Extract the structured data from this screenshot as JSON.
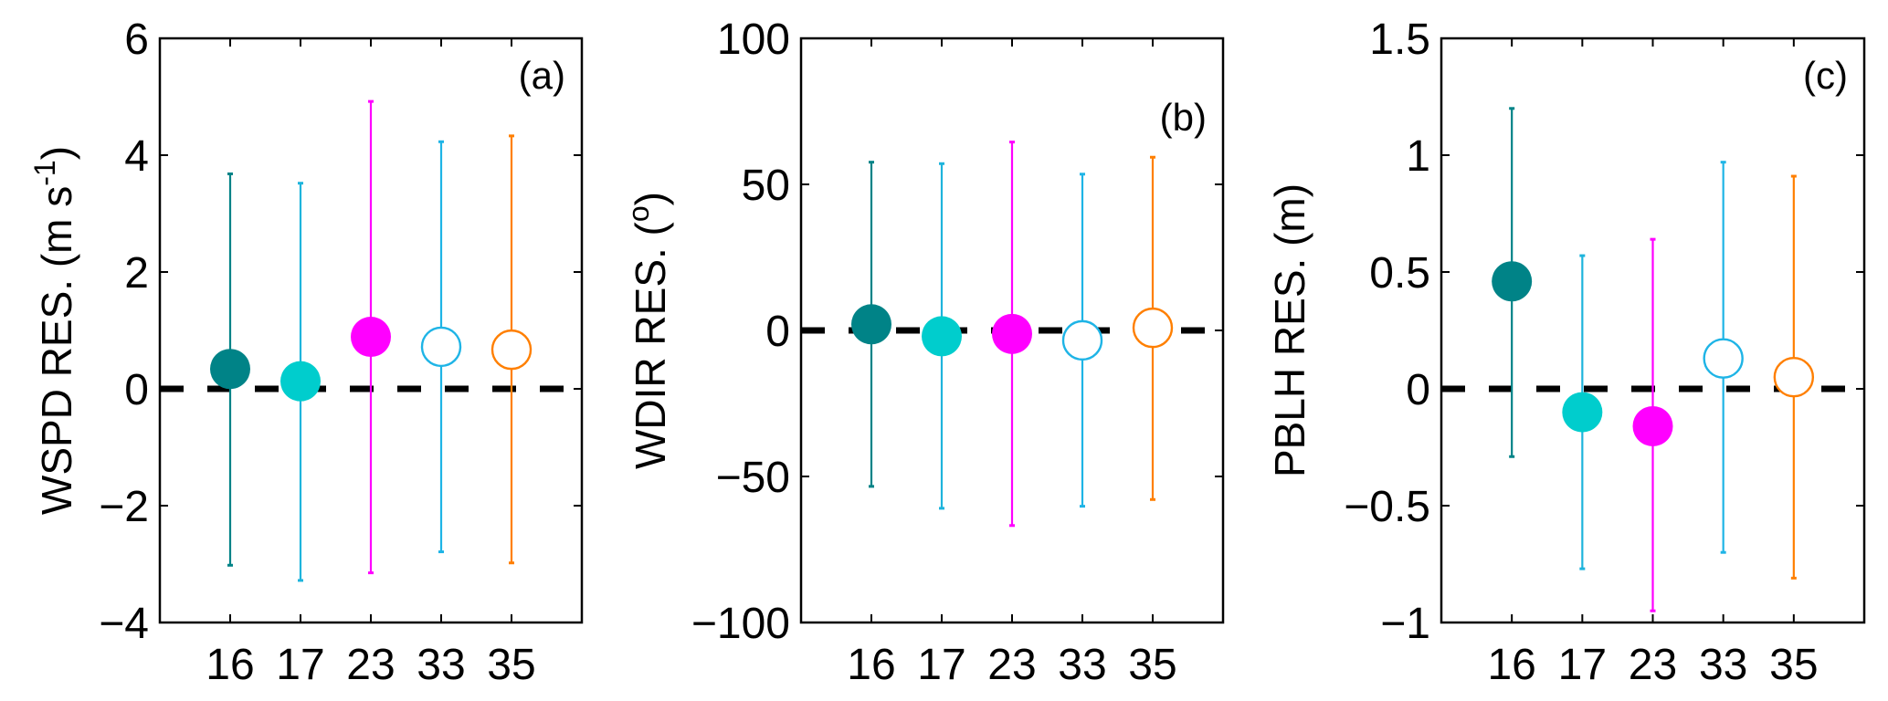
{
  "chart_data": [
    {
      "type": "scatter",
      "panel_label": "(a)",
      "ylabel": {
        "main": "WSPD RES. (m s",
        "sup": "-1",
        "tail": ")"
      },
      "categories": [
        "16",
        "17",
        "23",
        "33",
        "35"
      ],
      "ylim": [
        -4,
        6
      ],
      "yticks": [
        -4,
        -2,
        0,
        2,
        4,
        6
      ],
      "ytick_labels": [
        "−4",
        "−2",
        "0",
        "2",
        "4",
        "6"
      ],
      "reference_line": 0,
      "mean": [
        0.34,
        0.13,
        0.89,
        0.72,
        0.67
      ],
      "upper": [
        3.68,
        3.52,
        4.92,
        4.23,
        4.33
      ],
      "lower": [
        -3.02,
        -3.28,
        -3.15,
        -2.79,
        -2.98
      ]
    },
    {
      "type": "scatter",
      "panel_label": "(b)",
      "ylabel": {
        "main": "WDIR RES. (",
        "sup": "o",
        "tail": ")"
      },
      "categories": [
        "16",
        "17",
        "23",
        "33",
        "35"
      ],
      "ylim": [
        -100,
        100
      ],
      "yticks": [
        -100,
        -50,
        0,
        50,
        100
      ],
      "ytick_labels": [
        "−100",
        "−50",
        "0",
        "50",
        "100"
      ],
      "reference_line": 0,
      "mean": [
        2.1,
        -2.0,
        -1.2,
        -3.4,
        0.9
      ],
      "upper": [
        57.6,
        57.1,
        64.5,
        53.5,
        59.3
      ],
      "lower": [
        -53.4,
        -60.9,
        -66.8,
        -60.2,
        -57.9
      ]
    },
    {
      "type": "scatter",
      "panel_label": "(c)",
      "ylabel": {
        "main": "PBLH RES. (m)",
        "sup": "",
        "tail": ""
      },
      "categories": [
        "16",
        "17",
        "23",
        "33",
        "35"
      ],
      "ylim": [
        -1,
        1.5
      ],
      "yticks": [
        -1,
        -0.5,
        0,
        0.5,
        1,
        1.5
      ],
      "ytick_labels": [
        "−1",
        "−0.5",
        "0",
        "0.5",
        "1",
        "1.5"
      ],
      "reference_line": 0,
      "mean": [
        0.46,
        -0.1,
        -0.16,
        0.13,
        0.05
      ],
      "upper": [
        1.2,
        0.57,
        0.64,
        0.97,
        0.91
      ],
      "lower": [
        -0.29,
        -0.77,
        -0.95,
        -0.7,
        -0.81
      ]
    }
  ],
  "styles": {
    "marker_fill": [
      true,
      true,
      true,
      false,
      false
    ],
    "marker_color": [
      "#008387",
      "#00CDCD",
      "#FF00FF",
      "#1EB4E6",
      "#FF7F00"
    ],
    "errorbar_color": [
      "#008387",
      "#1EB4DC",
      "#FF00FF",
      "#1EB4E6",
      "#FF7F00"
    ],
    "reference_line_color": "#000000"
  }
}
